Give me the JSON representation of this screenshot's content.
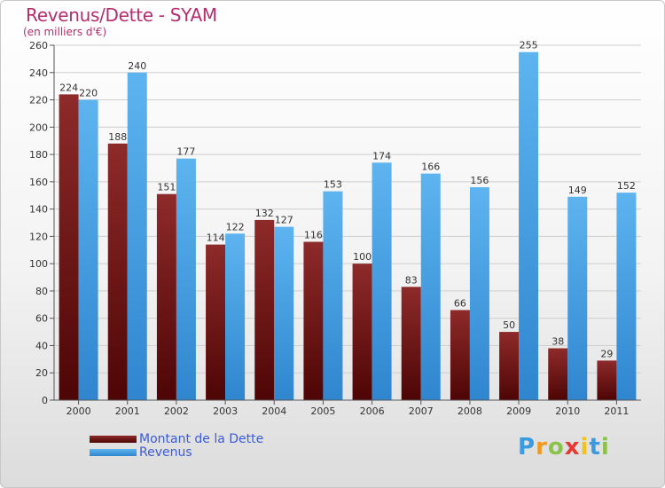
{
  "header": {
    "title": "Revenus/Dette - SYAM",
    "subtitle": "(en milliers d'€)"
  },
  "legend": {
    "items": [
      {
        "label": "Montant de la Dette",
        "color": "#7a1a1a"
      },
      {
        "label": "Revenus",
        "color": "#4da6e8"
      }
    ]
  },
  "logo": {
    "text": "Proxiti"
  },
  "chart_data": {
    "type": "bar",
    "title": "Revenus/Dette - SYAM",
    "subtitle": "(en milliers d'€)",
    "categories": [
      "2000",
      "2001",
      "2002",
      "2003",
      "2004",
      "2005",
      "2006",
      "2007",
      "2008",
      "2009",
      "2010",
      "2011"
    ],
    "series": [
      {
        "name": "Montant de la Dette",
        "color": "#7a1a1a",
        "values": [
          224,
          188,
          151,
          114,
          132,
          116,
          100,
          83,
          66,
          50,
          38,
          29
        ]
      },
      {
        "name": "Revenus",
        "color": "#4da6e8",
        "values": [
          220,
          240,
          177,
          122,
          127,
          153,
          174,
          166,
          156,
          255,
          149,
          152
        ]
      }
    ],
    "ylim": [
      0,
      260
    ],
    "yticks": [
      0,
      20,
      40,
      60,
      80,
      100,
      120,
      140,
      160,
      180,
      200,
      220,
      240,
      260
    ],
    "grid": true,
    "legend_position": "bottom-left"
  }
}
